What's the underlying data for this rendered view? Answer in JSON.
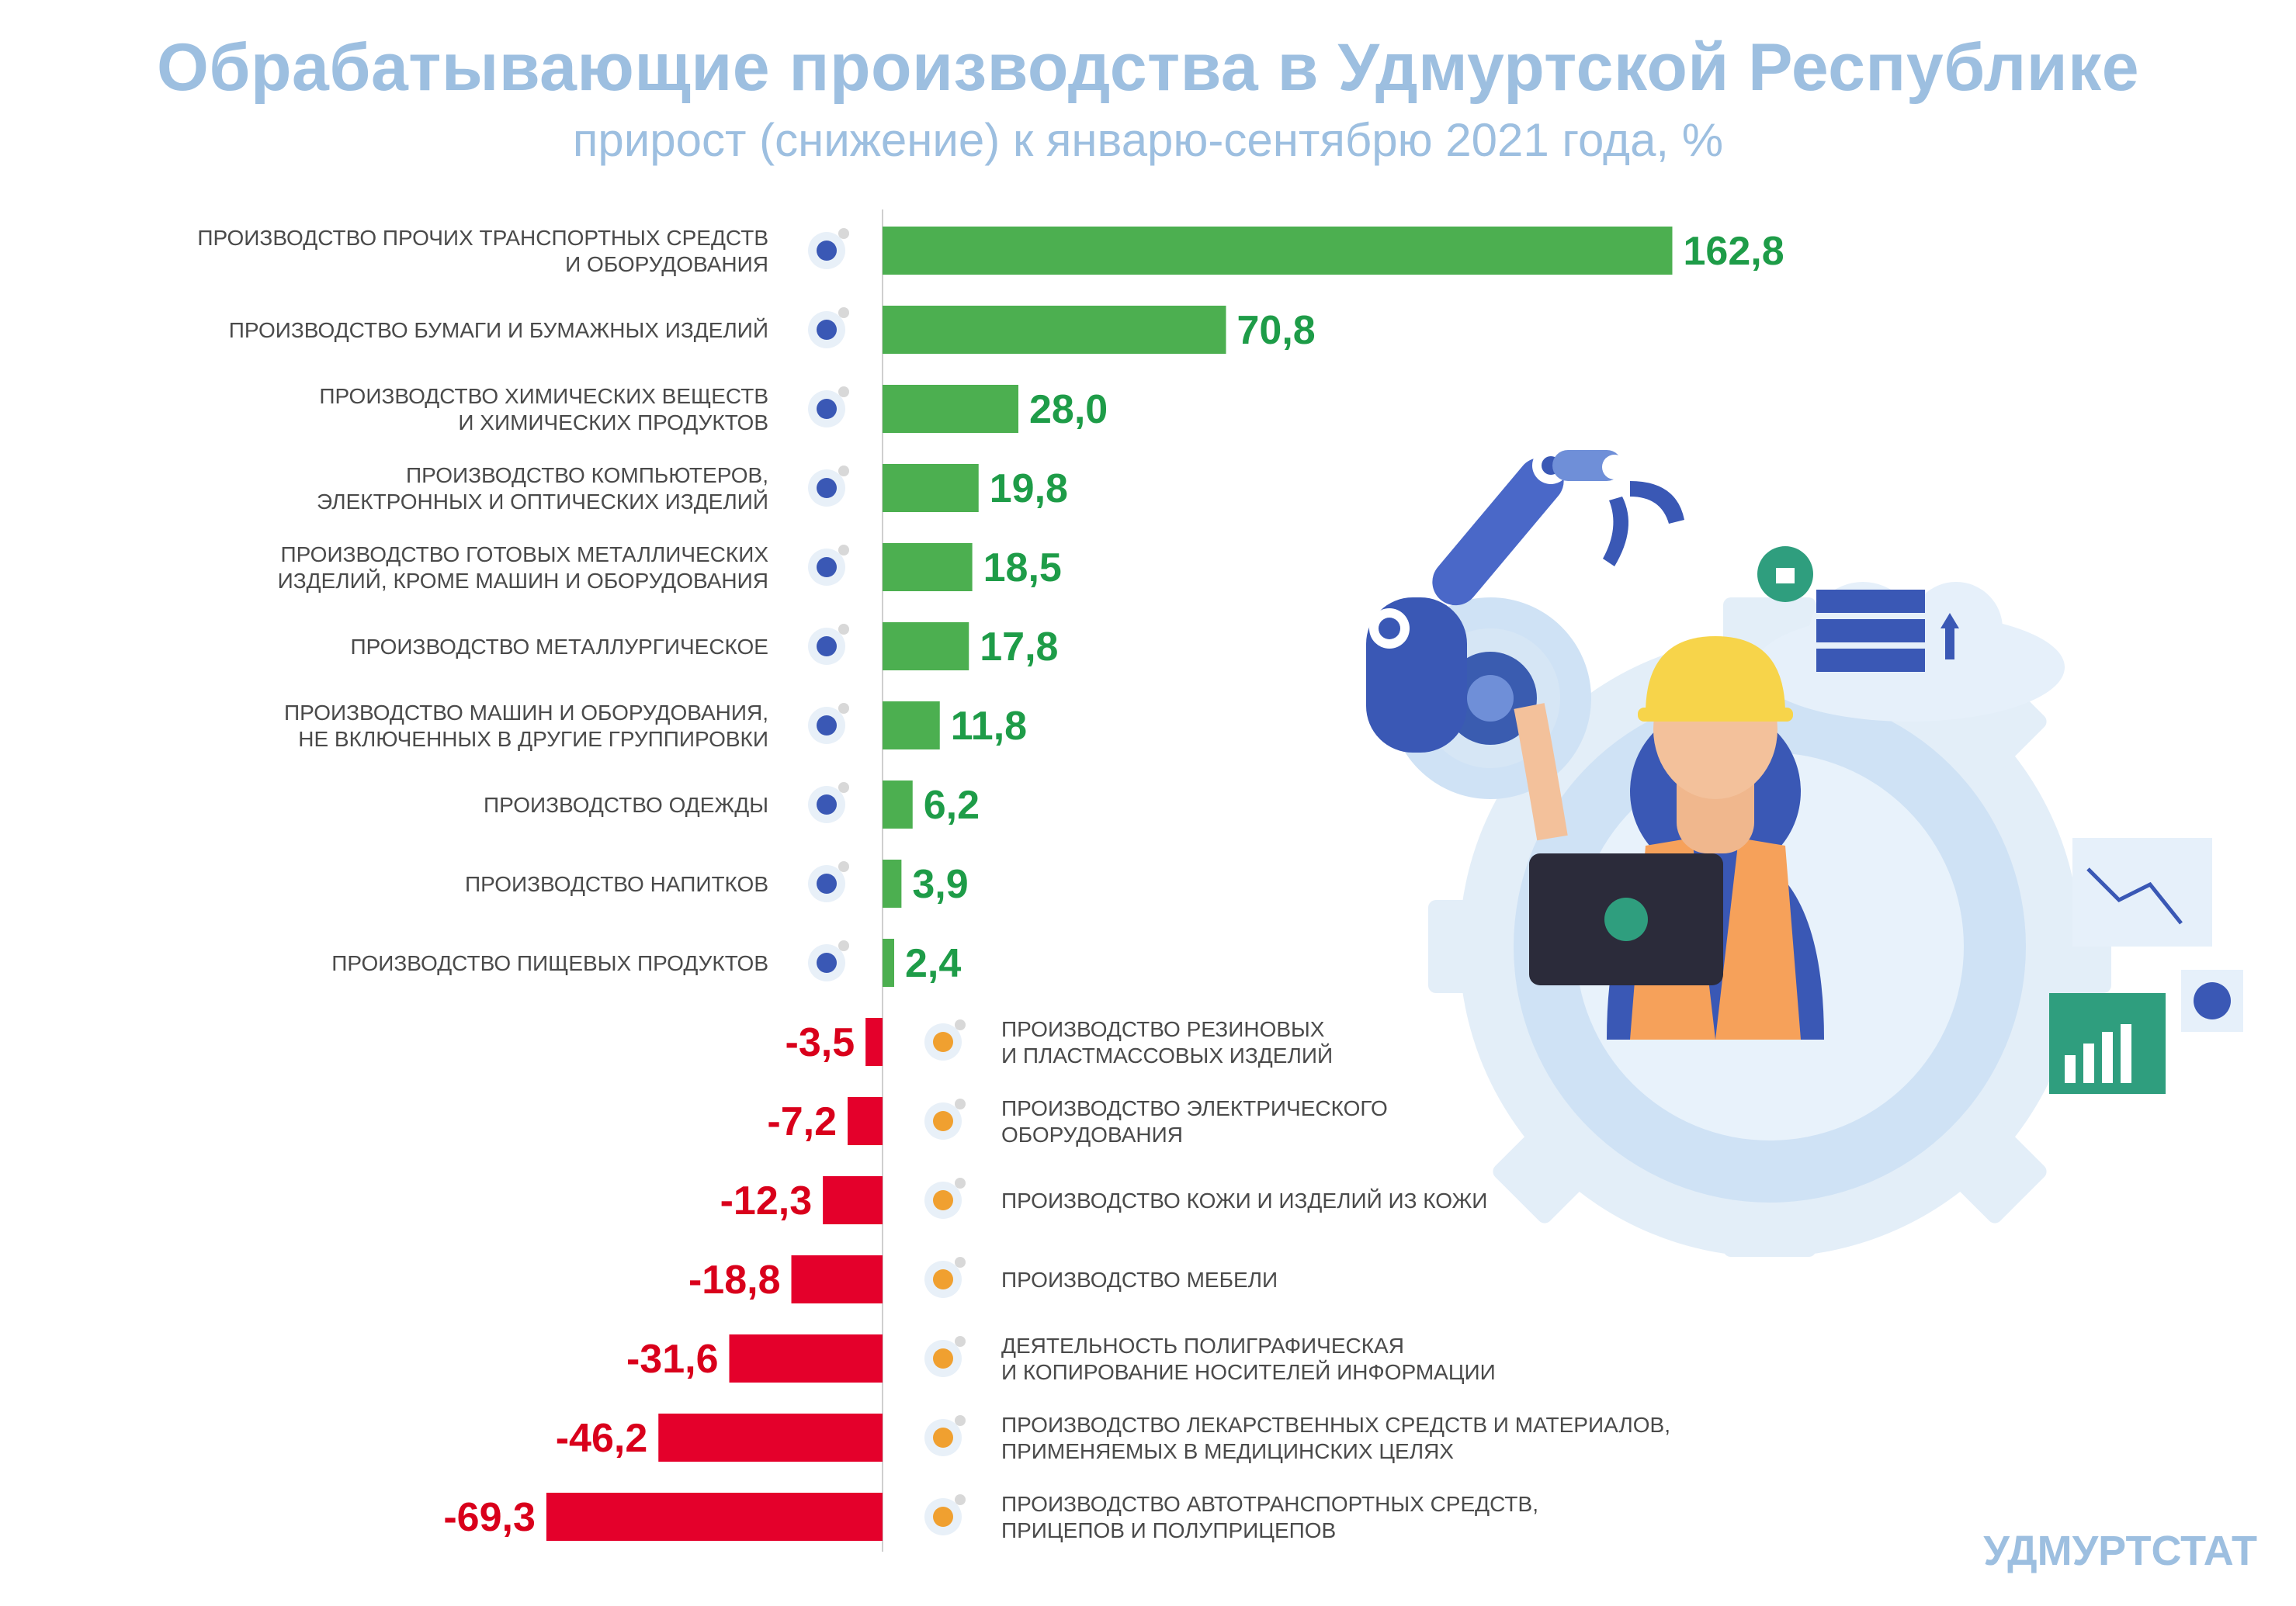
{
  "header": {
    "title": "Обрабатывающие производства в Удмуртской Республике",
    "subtitle": "прирост (снижение) к январю-сентябрю 2021 года, %"
  },
  "footer": {
    "source": "УДМУРТСТАТ"
  },
  "colors": {
    "positive": "#4caf50",
    "negative": "#e4002b",
    "title": "#9dbfe0"
  },
  "chart_data": {
    "type": "bar",
    "orientation": "horizontal",
    "categories": [
      "ПРОИЗВОДСТВО ПРОЧИХ ТРАНСПОРТНЫХ СРЕДСТВ\nИ ОБОРУДОВАНИЯ",
      "ПРОИЗВОДСТВО БУМАГИ И БУМАЖНЫХ ИЗДЕЛИЙ",
      "ПРОИЗВОДСТВО ХИМИЧЕСКИХ ВЕЩЕСТВ\nИ ХИМИЧЕСКИХ ПРОДУКТОВ",
      "ПРОИЗВОДСТВО КОМПЬЮТЕРОВ,\nЭЛЕКТРОННЫХ И ОПТИЧЕСКИХ ИЗДЕЛИЙ",
      "ПРОИЗВОДСТВО ГОТОВЫХ МЕТАЛЛИЧЕСКИХ\nИЗДЕЛИЙ, КРОМЕ МАШИН И ОБОРУДОВАНИЯ",
      "ПРОИЗВОДСТВО МЕТАЛЛУРГИЧЕСКОЕ",
      "ПРОИЗВОДСТВО МАШИН И ОБОРУДОВАНИЯ,\nНЕ ВКЛЮЧЕННЫХ В ДРУГИЕ ГРУППИРОВКИ",
      "ПРОИЗВОДСТВО ОДЕЖДЫ",
      "ПРОИЗВОДСТВО НАПИТКОВ",
      "ПРОИЗВОДСТВО ПИЩЕВЫХ ПРОДУКТОВ",
      "ПРОИЗВОДСТВО РЕЗИНОВЫХ\nИ ПЛАСТМАССОВЫХ ИЗДЕЛИЙ",
      "ПРОИЗВОДСТВО ЭЛЕКТРИЧЕСКОГО\nОБОРУДОВАНИЯ",
      "ПРОИЗВОДСТВО КОЖИ И ИЗДЕЛИЙ ИЗ КОЖИ",
      "ПРОИЗВОДСТВО МЕБЕЛИ",
      "ДЕЯТЕЛЬНОСТЬ ПОЛИГРАФИЧЕСКАЯ\nИ КОПИРОВАНИЕ НОСИТЕЛЕЙ ИНФОРМАЦИИ",
      "ПРОИЗВОДСТВО ЛЕКАРСТВЕННЫХ СРЕДСТВ И МАТЕРИАЛОВ,\nПРИМЕНЯЕМЫХ В МЕДИЦИНСКИХ ЦЕЛЯХ",
      "ПРОИЗВОДСТВО АВТОТРАНСПОРТНЫХ СРЕДСТВ,\nПРИЦЕПОВ И ПОЛУПРИЦЕПОВ"
    ],
    "values": [
      162.8,
      70.8,
      28.0,
      19.8,
      18.5,
      17.8,
      11.8,
      6.2,
      3.9,
      2.4,
      -3.5,
      -7.2,
      -12.3,
      -18.8,
      -31.6,
      -46.2,
      -69.3
    ],
    "value_labels": [
      "162,8",
      "70,8",
      "28,0",
      "19,8",
      "18,5",
      "17,8",
      "11,8",
      "6,2",
      "3,9",
      "2,4",
      "-3,5",
      "-7,2",
      "-12,3",
      "-18,8",
      "-31,6",
      "-46,2",
      "-69,3"
    ],
    "icons": [
      "bicycle-icon",
      "paper-book-icon",
      "test-tube-icon",
      "monitor-icon",
      "gears-icon",
      "ladle-icon",
      "robot-arm-icon",
      "clothing-icon",
      "bottle-icon",
      "ice-cream-icon",
      "rubber-boot-icon",
      "drill-icon",
      "leather-hide-icon",
      "wardrobe-icon",
      "printed-photos-icon",
      "medicine-jar-icon",
      "car-icon"
    ],
    "grid": false,
    "legend": "none"
  }
}
